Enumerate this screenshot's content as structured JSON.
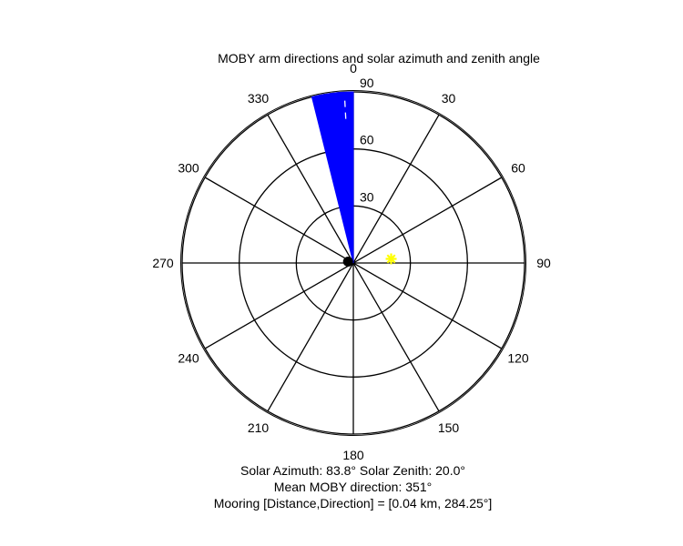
{
  "chart_data": {
    "type": "polar",
    "title": "MOBY arm directions and solar azimuth and zenith angle",
    "direction_convention": "clockwise, 0 at top",
    "zenith_range": [
      0,
      90
    ],
    "radial_ticks": [
      "30",
      "60",
      "90"
    ],
    "angle_ticks": [
      "0",
      "30",
      "60",
      "90",
      "120",
      "150",
      "180",
      "210",
      "240",
      "270",
      "300",
      "330"
    ],
    "arm_direction_sector": {
      "from_deg": 346,
      "to_deg": 0,
      "radius_zenith": 90,
      "color": "#0000ff"
    },
    "arm_dashes": [
      {
        "direction_deg": 357,
        "radius_zenith": 90
      }
    ],
    "sun_marker": {
      "azimuth_deg": 83.8,
      "zenith_deg": 20.0,
      "color": "#ffff00"
    },
    "moby_marker": {
      "direction_deg": 284.25,
      "distance": 0.04,
      "color": "#000000"
    },
    "grid": true,
    "info_lines": [
      "Solar Azimuth: 83.8°   Solar Zenith: 20.0°",
      "Mean MOBY direction: 351°",
      "Mooring [Distance,Direction] = [0.04 km, 284.25°]"
    ]
  }
}
